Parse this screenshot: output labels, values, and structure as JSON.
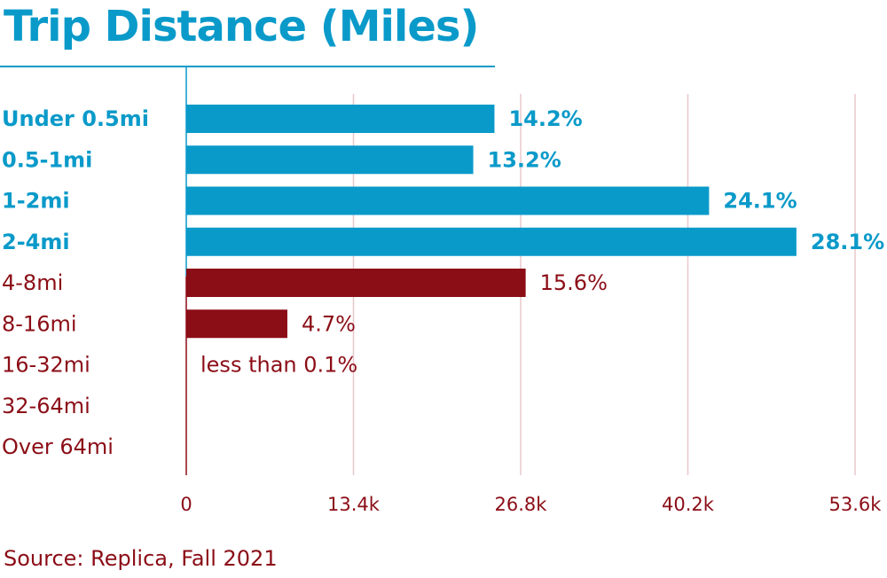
{
  "chart_data": {
    "type": "bar",
    "orientation": "horizontal",
    "title": "Trip Distance (Miles)",
    "categories": [
      "Under 0.5mi",
      "0.5-1mi",
      "1-2mi",
      "2-4mi",
      "4-8mi",
      "8-16mi",
      "16-32mi",
      "32-64mi",
      "Over 64mi"
    ],
    "values": [
      24700,
      23000,
      41900,
      48900,
      27200,
      8100,
      100,
      0,
      0
    ],
    "labels": [
      "14.2%",
      "13.2%",
      "24.1%",
      "28.1%",
      "15.6%",
      "4.7%",
      "less than 0.1%",
      "",
      ""
    ],
    "colors": [
      "#0a9ac9",
      "#0a9ac9",
      "#0a9ac9",
      "#0a9ac9",
      "#8b0d16",
      "#8b0d16",
      "#8b0d16",
      "#8b0d16",
      "#8b0d16"
    ],
    "highlight_label_bold": [
      true,
      true,
      true,
      true,
      false,
      false,
      false,
      false,
      false
    ],
    "x_ticks": [
      0,
      13400,
      26800,
      40200,
      53600
    ],
    "x_tick_labels": [
      "0",
      "13.4k",
      "26.8k",
      "40.2k",
      "53.6k"
    ],
    "xlim": [
      0,
      53600
    ],
    "grid": true,
    "xlabel": "",
    "ylabel": ""
  },
  "source": "Source: Replica, Fall 2021",
  "colors": {
    "blue": "#0a9ac9",
    "red": "#8b0d16",
    "grid": "#e8c8cc"
  }
}
